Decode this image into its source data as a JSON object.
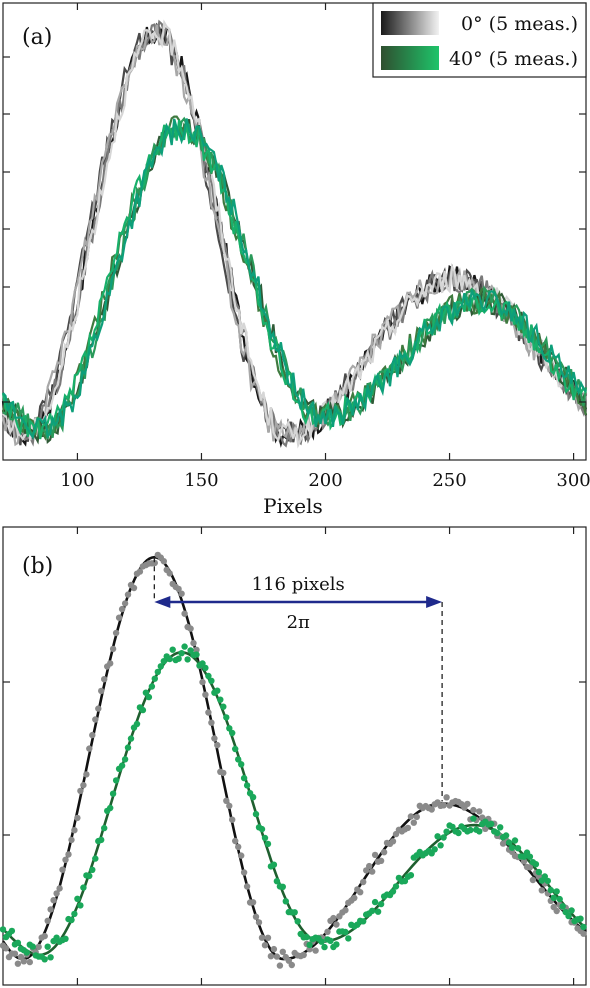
{
  "chart_data": [
    {
      "panel": "(a)",
      "type": "line",
      "xlabel": "Pixels",
      "ylabel": "",
      "xlim": [
        70,
        305
      ],
      "ylim": [
        0,
        1
      ],
      "xticks": [
        100,
        150,
        200,
        250,
        300
      ],
      "grid": false,
      "legend_position": "top-right",
      "legend": [
        {
          "label": "0° (5 meas.)",
          "gradient": [
            "#1a1a1a",
            "#f2f2f2"
          ]
        },
        {
          "label": "40° (5 meas.)",
          "gradient": [
            "#2f4f2f",
            "#1ec46a"
          ]
        }
      ],
      "series": [
        {
          "name": "0° (5 meas.)",
          "count": 5,
          "peak1": {
            "x": 131,
            "y": 0.95
          },
          "min1": {
            "x": 78,
            "y": 0.02
          },
          "min2": {
            "x": 183,
            "y": 0.02
          },
          "peak2": {
            "x": 250,
            "y": 0.38
          }
        },
        {
          "name": "40° (5 meas.)",
          "count": 5,
          "peak1": {
            "x": 141,
            "y": 0.73
          },
          "min1": {
            "x": 85,
            "y": 0.03
          },
          "min2": {
            "x": 198,
            "y": 0.06
          },
          "peak2": {
            "x": 262,
            "y": 0.33
          }
        }
      ]
    },
    {
      "panel": "(b)",
      "type": "scatter",
      "xlabel": "",
      "ylabel": "",
      "xlim": [
        70,
        305
      ],
      "ylim": [
        0,
        1
      ],
      "grid": false,
      "series": [
        {
          "name": "0°",
          "color": "#8a8a8a",
          "fit_color": "#111111",
          "peak1": {
            "x": 131,
            "y": 0.95
          },
          "peak2": {
            "x": 247,
            "y": 0.38
          }
        },
        {
          "name": "40°",
          "color": "#1aa85a",
          "fit_color": "#1f5f2f",
          "peak1": {
            "x": 142,
            "y": 0.73
          },
          "peak2": {
            "x": 260,
            "y": 0.33
          }
        }
      ],
      "annotation": {
        "text_top": "116 pixels",
        "text_bottom": "2π",
        "x_from": 131,
        "x_to": 247
      }
    }
  ],
  "colors": {
    "arrow": "#1f2a8c",
    "gray_points": "#8a8a8a",
    "green_points": "#1aa85a"
  }
}
